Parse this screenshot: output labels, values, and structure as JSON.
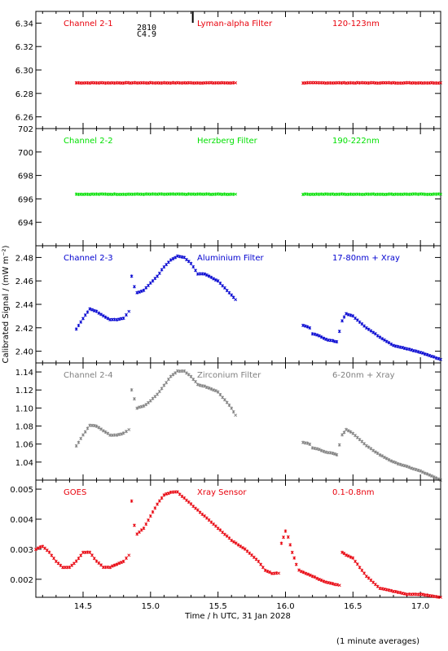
{
  "chart_data": {
    "type": "scatter",
    "xlabel": "Time / h UTC, 31 Jan 2028",
    "ylabel": "Calibrated Signal / (mW m⁻²)",
    "footnote": "(1 minute averages)",
    "xlim": [
      14.15,
      17.15
    ],
    "x_ticks": [
      "14.5",
      "15.0",
      "15.5",
      "16.0",
      "16.5",
      "17.0"
    ],
    "annotation": {
      "x": 15.15,
      "lines": [
        "2810",
        "C4.9"
      ]
    },
    "panels": [
      {
        "labels": [
          "Channel 2-1",
          "Lyman-alpha Filter",
          "120-123nm"
        ],
        "color": "#e8000b",
        "ylim": [
          6.25,
          6.35
        ],
        "y_ticks": [
          "6.26",
          "6.28",
          "6.30",
          "6.32",
          "6.34"
        ],
        "segments": [
          {
            "x": [
              14.45,
              14.7,
              15.0,
              15.3,
              15.63
            ],
            "y": [
              6.289,
              6.289,
              6.289,
              6.289,
              6.289
            ]
          },
          {
            "x": [
              16.13,
              16.5,
              16.9,
              17.15
            ],
            "y": [
              6.289,
              6.289,
              6.289,
              6.289
            ]
          }
        ]
      },
      {
        "labels": [
          "Channel 2-2",
          "Herzberg Filter",
          "190-222nm"
        ],
        "color": "#00e000",
        "ylim": [
          692.0,
          702.0
        ],
        "y_ticks": [
          "694",
          "696",
          "698",
          "700",
          "702"
        ],
        "segments": [
          {
            "x": [
              14.45,
              14.8,
              15.2,
              15.63
            ],
            "y": [
              696.4,
              696.4,
              696.4,
              696.4
            ]
          },
          {
            "x": [
              16.13,
              16.6,
              17.15
            ],
            "y": [
              696.4,
              696.4,
              696.4
            ]
          }
        ]
      },
      {
        "labels": [
          "Channel 2-3",
          "Aluminium Filter",
          "17-80nm + Xray"
        ],
        "color": "#0000d0",
        "ylim": [
          2.39,
          2.49
        ],
        "y_ticks": [
          "2.40",
          "2.42",
          "2.44",
          "2.46",
          "2.48"
        ],
        "segments": [
          {
            "x": [
              14.45,
              14.5,
              14.55,
              14.6,
              14.65,
              14.7,
              14.75,
              14.8,
              14.84
            ],
            "y": [
              2.419,
              2.428,
              2.436,
              2.434,
              2.43,
              2.427,
              2.427,
              2.428,
              2.434
            ]
          },
          {
            "x": [
              14.86,
              14.88,
              14.9,
              14.95,
              15.0,
              15.05,
              15.1,
              15.15,
              15.2,
              15.25,
              15.3,
              15.35,
              15.4,
              15.5,
              15.6,
              15.63
            ],
            "y": [
              2.464,
              2.455,
              2.45,
              2.452,
              2.458,
              2.464,
              2.472,
              2.478,
              2.481,
              2.48,
              2.475,
              2.466,
              2.466,
              2.46,
              2.448,
              2.444
            ]
          },
          {
            "x": [
              16.13,
              16.18,
              16.2,
              16.25,
              16.3,
              16.35,
              16.38,
              16.42,
              16.45,
              16.5,
              16.6,
              16.7,
              16.8,
              16.9,
              17.0,
              17.15
            ],
            "y": [
              2.422,
              2.42,
              2.415,
              2.413,
              2.41,
              2.409,
              2.408,
              2.426,
              2.432,
              2.43,
              2.42,
              2.412,
              2.405,
              2.402,
              2.399,
              2.393
            ]
          }
        ]
      },
      {
        "labels": [
          "Channel 2-4",
          "Zirconium Filter",
          "6-20nm + Xray"
        ],
        "color": "#808080",
        "ylim": [
          1.02,
          1.15
        ],
        "y_ticks": [
          "1.04",
          "1.06",
          "1.08",
          "1.10",
          "1.12",
          "1.14"
        ],
        "segments": [
          {
            "x": [
              14.45,
              14.5,
              14.55,
              14.6,
              14.65,
              14.7,
              14.75,
              14.8,
              14.84
            ],
            "y": [
              1.058,
              1.07,
              1.081,
              1.08,
              1.075,
              1.07,
              1.07,
              1.072,
              1.076
            ]
          },
          {
            "x": [
              14.86,
              14.88,
              14.9,
              14.95,
              15.0,
              15.05,
              15.1,
              15.15,
              15.2,
              15.25,
              15.3,
              15.35,
              15.4,
              15.5,
              15.6,
              15.63
            ],
            "y": [
              1.12,
              1.11,
              1.1,
              1.102,
              1.108,
              1.115,
              1.125,
              1.135,
              1.141,
              1.141,
              1.135,
              1.126,
              1.124,
              1.118,
              1.1,
              1.092
            ]
          },
          {
            "x": [
              16.13,
              16.18,
              16.2,
              16.25,
              16.3,
              16.35,
              16.38,
              16.42,
              16.45,
              16.5,
              16.6,
              16.7,
              16.8,
              16.9,
              17.0,
              17.15
            ],
            "y": [
              1.062,
              1.06,
              1.056,
              1.054,
              1.051,
              1.05,
              1.048,
              1.07,
              1.076,
              1.072,
              1.058,
              1.048,
              1.04,
              1.035,
              1.03,
              1.02
            ]
          }
        ]
      },
      {
        "labels": [
          "GOES",
          "Xray Sensor",
          "0.1-0.8nm"
        ],
        "color": "#e8000b",
        "ylim": [
          0.0014,
          0.0053
        ],
        "y_ticks": [
          "0.002",
          "0.003",
          "0.004",
          "0.005"
        ],
        "segments": [
          {
            "x": [
              14.15,
              14.2,
              14.25,
              14.3,
              14.35,
              14.4,
              14.45,
              14.5,
              14.55,
              14.6,
              14.65,
              14.7,
              14.75,
              14.8,
              14.84
            ],
            "y": [
              0.003,
              0.0031,
              0.0029,
              0.0026,
              0.0024,
              0.0024,
              0.0026,
              0.0029,
              0.0029,
              0.0026,
              0.0024,
              0.0024,
              0.0025,
              0.0026,
              0.0028
            ]
          },
          {
            "x": [
              14.86,
              14.88,
              14.9,
              14.95,
              15.0,
              15.05,
              15.1,
              15.15,
              15.2,
              15.3,
              15.4,
              15.5,
              15.6,
              15.7,
              15.8,
              15.85,
              15.9,
              15.95
            ],
            "y": [
              0.0046,
              0.0038,
              0.0035,
              0.0037,
              0.0041,
              0.0045,
              0.0048,
              0.0049,
              0.0049,
              0.0045,
              0.0041,
              0.0037,
              0.0033,
              0.003,
              0.0026,
              0.0023,
              0.0022,
              0.0022
            ]
          },
          {
            "x": [
              15.97,
              16.0,
              16.02,
              16.05,
              16.08,
              16.1,
              16.15,
              16.2,
              16.3,
              16.4
            ],
            "y": [
              0.0032,
              0.0036,
              0.0034,
              0.0029,
              0.0025,
              0.0023,
              0.0022,
              0.0021,
              0.0019,
              0.0018
            ]
          },
          {
            "x": [
              16.42,
              16.45,
              16.5,
              16.55,
              16.6,
              16.65,
              16.7,
              16.8,
              16.9,
              17.0,
              17.15
            ],
            "y": [
              0.0029,
              0.0028,
              0.0027,
              0.0024,
              0.0021,
              0.0019,
              0.0017,
              0.0016,
              0.0015,
              0.0015,
              0.0014
            ]
          }
        ]
      }
    ]
  }
}
